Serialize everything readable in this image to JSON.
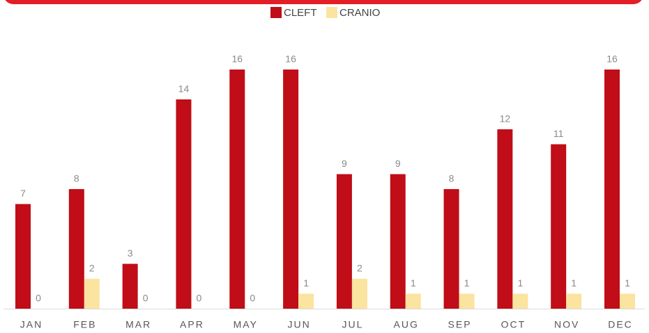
{
  "chart_data": {
    "type": "bar",
    "categories": [
      "JAN",
      "FEB",
      "MAR",
      "APR",
      "MAY",
      "JUN",
      "JUL",
      "AUG",
      "SEP",
      "OCT",
      "NOV",
      "DEC"
    ],
    "series": [
      {
        "name": "CLEFT",
        "color": "#c00d17",
        "values": [
          7,
          8,
          3,
          14,
          16,
          16,
          9,
          9,
          8,
          12,
          11,
          16
        ]
      },
      {
        "name": "CRANIO",
        "color": "#fbe3a0",
        "values": [
          0,
          2,
          0,
          0,
          0,
          1,
          2,
          1,
          1,
          1,
          1,
          1
        ]
      }
    ],
    "ylim": [
      0,
      16
    ]
  }
}
